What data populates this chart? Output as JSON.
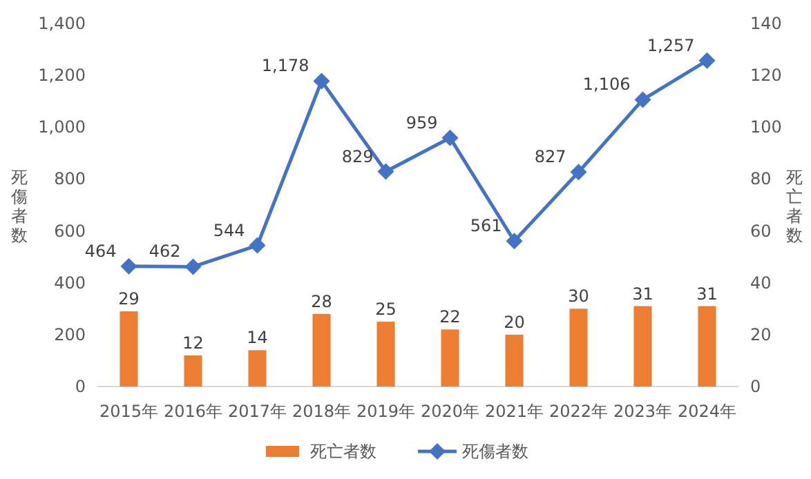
{
  "chart_data": {
    "type": "bar",
    "categories": [
      "2015年",
      "2016年",
      "2017年",
      "2018年",
      "2019年",
      "2020年",
      "2021年",
      "2022年",
      "2023年",
      "2024年"
    ],
    "ylabel": "死傷者数",
    "y2label": "死亡者数",
    "ylim": [
      0,
      1400
    ],
    "yticks": [
      0,
      200,
      400,
      600,
      800,
      {
        "value": 1000,
        "label": "1,000"
      },
      {
        "value": 1200,
        "label": "1,200"
      },
      {
        "value": 1400,
        "label": "1,400"
      }
    ],
    "y2lim": [
      0,
      140
    ],
    "y2ticks": [
      0,
      20,
      40,
      60,
      80,
      100,
      120,
      140
    ],
    "legend": "bottom",
    "marker": "diamond",
    "series": [
      {
        "name": "死亡者数",
        "axis": "y2",
        "color": "#ed7d31",
        "values": [
          29,
          12,
          14,
          28,
          25,
          22,
          20,
          30,
          31,
          31
        ],
        "value_labels": [
          "29",
          "12",
          "14",
          "28",
          "25",
          "22",
          "20",
          "30",
          "31",
          "31"
        ]
      },
      {
        "name": "死傷者数",
        "type": "line",
        "color": "#4472c4",
        "values": [
          464,
          462,
          544,
          1178,
          829,
          959,
          561,
          827,
          1106,
          1257
        ],
        "value_labels": [
          "464",
          "462",
          "544",
          "1,178",
          "829",
          "959",
          "561",
          "827",
          "1,106",
          "1,257"
        ]
      }
    ]
  }
}
